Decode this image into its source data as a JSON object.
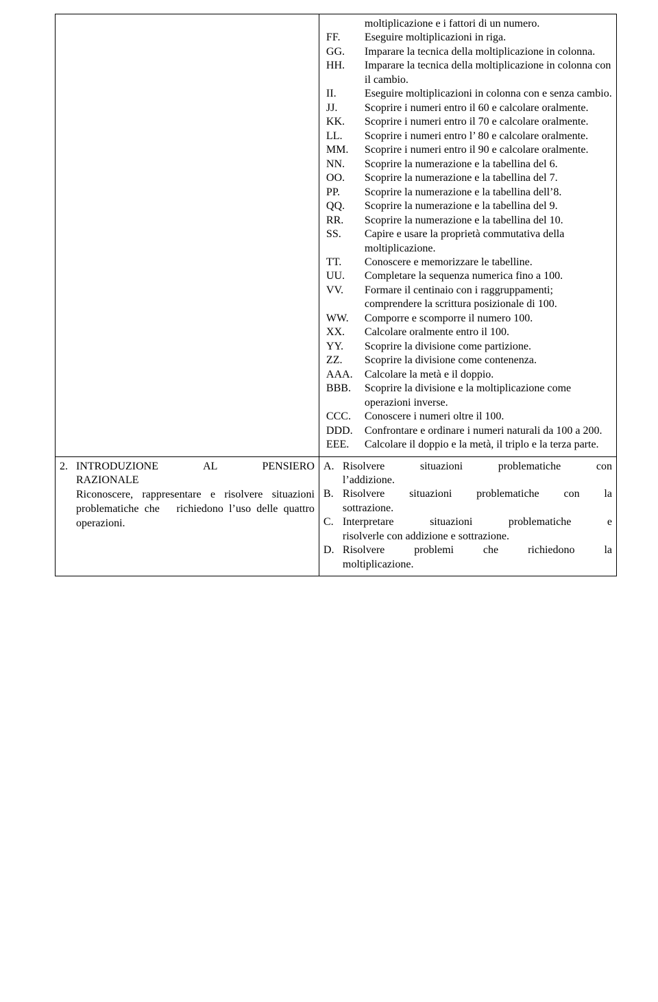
{
  "row1": {
    "right_indent_marker_width": 56,
    "items": [
      {
        "marker": "",
        "text": "moltiplicazione e i fattori di un numero.",
        "indent_only": true
      },
      {
        "marker": "FF.",
        "text": "Eseguire moltiplicazioni in riga."
      },
      {
        "marker": "GG.",
        "text": "Imparare la tecnica della moltiplicazione in colonna."
      },
      {
        "marker": "HH.",
        "text": "Imparare la tecnica della moltiplicazione in colonna con il cambio."
      },
      {
        "marker": "II.",
        "text": "Eseguire moltiplicazioni in colonna con e senza cambio."
      },
      {
        "marker": "JJ.",
        "text": "Scoprire i numeri entro il 60 e calcolare oralmente."
      },
      {
        "marker": "KK.",
        "text": "Scoprire i numeri entro il 70 e calcolare oralmente."
      },
      {
        "marker": "LL.",
        "text": "Scoprire i numeri entro l’ 80 e calcolare oralmente."
      },
      {
        "marker": "MM.",
        "text": "Scoprire i numeri entro il 90 e calcolare oralmente."
      },
      {
        "marker": "NN.",
        "text": "Scoprire la numerazione e la tabellina del 6."
      },
      {
        "marker": "OO.",
        "text": "Scoprire la numerazione e la tabellina del 7."
      },
      {
        "marker": "PP.",
        "text": "Scoprire la numerazione e la tabellina dell’8."
      },
      {
        "marker": "QQ.",
        "text": "Scoprire la numerazione e la tabellina del 9."
      },
      {
        "marker": "RR.",
        "text": "Scoprire la numerazione e la tabellina del 10."
      },
      {
        "marker": "SS.",
        "text": "Capire e usare la proprietà commutativa della moltiplicazione."
      },
      {
        "marker": "TT.",
        "text": "Conoscere e memorizzare le tabelline."
      },
      {
        "marker": "UU.",
        "text": "Completare la sequenza numerica fino a 100."
      },
      {
        "marker": "VV.",
        "text": "Formare il centinaio con i raggruppamenti; comprendere la scrittura posizionale di 100."
      },
      {
        "marker": "WW.",
        "text": "Comporre e scomporre il numero 100."
      },
      {
        "marker": "XX.",
        "text": "Calcolare oralmente entro il 100."
      },
      {
        "marker": "YY.",
        "text": "Scoprire la divisione come partizione."
      },
      {
        "marker": "ZZ.",
        "text": "Scoprire la divisione come contenenza."
      },
      {
        "marker": "AAA.",
        "text": "Calcolare la metà e il doppio."
      },
      {
        "marker": "BBB.",
        "text": "Scoprire la divisione e la moltiplicazione come operazioni inverse."
      },
      {
        "marker": "CCC.",
        "text": "Conoscere i numeri oltre il 100."
      },
      {
        "marker": "DDD.",
        "text": "Confrontare e ordinare i numeri naturali da 100 a 200."
      },
      {
        "marker": "EEE.",
        "text": "Calcolare il doppio e la metà, il triplo e la terza parte."
      }
    ]
  },
  "row2": {
    "left": {
      "number": "2.",
      "title_words": [
        "INTRODUZIONE",
        "AL",
        "PENSIERO"
      ],
      "title_line2": "RAZIONALE",
      "body": "Riconoscere, rappresentare e risolvere situazioni problematiche che   richiedono l’uso delle quattro operazioni."
    },
    "right": [
      {
        "marker": "A.",
        "text_words": [
          "Risolvere",
          "situazioni",
          "problematiche",
          "con"
        ],
        "tail": "l’addizione."
      },
      {
        "marker": "B.",
        "text_words": [
          "Risolvere",
          "situazioni",
          "problematiche",
          "con",
          "la"
        ],
        "tail": "sottrazione."
      },
      {
        "marker": "C.",
        "text_words_lines": [
          [
            "Interpretare",
            "situazioni",
            "problematiche",
            "e"
          ],
          [
            "risolverle con addizione e sottrazione."
          ]
        ]
      },
      {
        "marker": "D.",
        "text_words": [
          "Risolvere",
          "problemi",
          "che",
          "richiedono",
          "la"
        ],
        "tail": "moltiplicazione."
      }
    ]
  },
  "style": {
    "font_family": "Times New Roman",
    "font_size_pt": 12,
    "text_color": "#000000",
    "background_color": "#ffffff",
    "border_color": "#000000",
    "line_height": 1.28
  }
}
